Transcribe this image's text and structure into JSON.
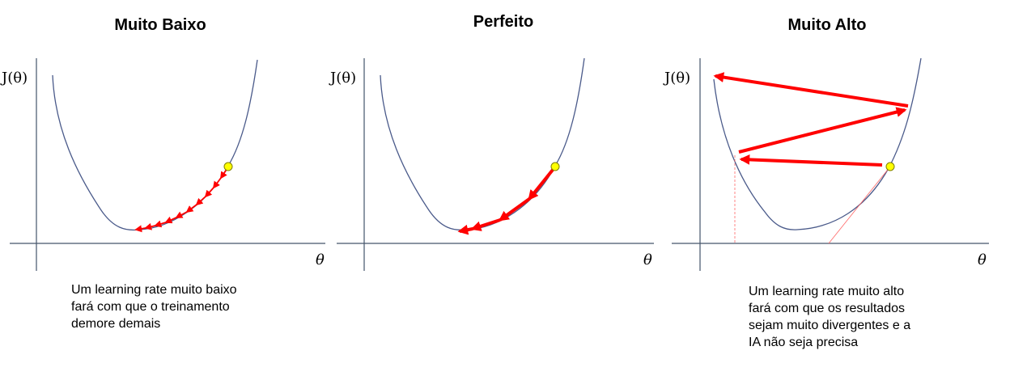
{
  "panels": [
    {
      "title": "Muito Baixo",
      "y_label": "J(θ)",
      "x_label": "θ",
      "caption": [
        "Um learning rate muito baixo",
        "fará com que o treinamento",
        "demore demais"
      ]
    },
    {
      "title": "Perfeito",
      "y_label": "J(θ)",
      "x_label": "θ",
      "caption": []
    },
    {
      "title": "Muito Alto",
      "y_label": "J(θ)",
      "x_label": "θ",
      "caption": [
        "Um learning rate muito alto",
        "fará com que os resultados",
        "sejam muito divergentes e a",
        "IA não seja precisa"
      ]
    }
  ],
  "colors": {
    "axis": "#44546a",
    "curve": "#4a5a8a",
    "arrow": "#ff0000",
    "start_point": "#ffff00",
    "start_point_border": "#7f7f00"
  }
}
